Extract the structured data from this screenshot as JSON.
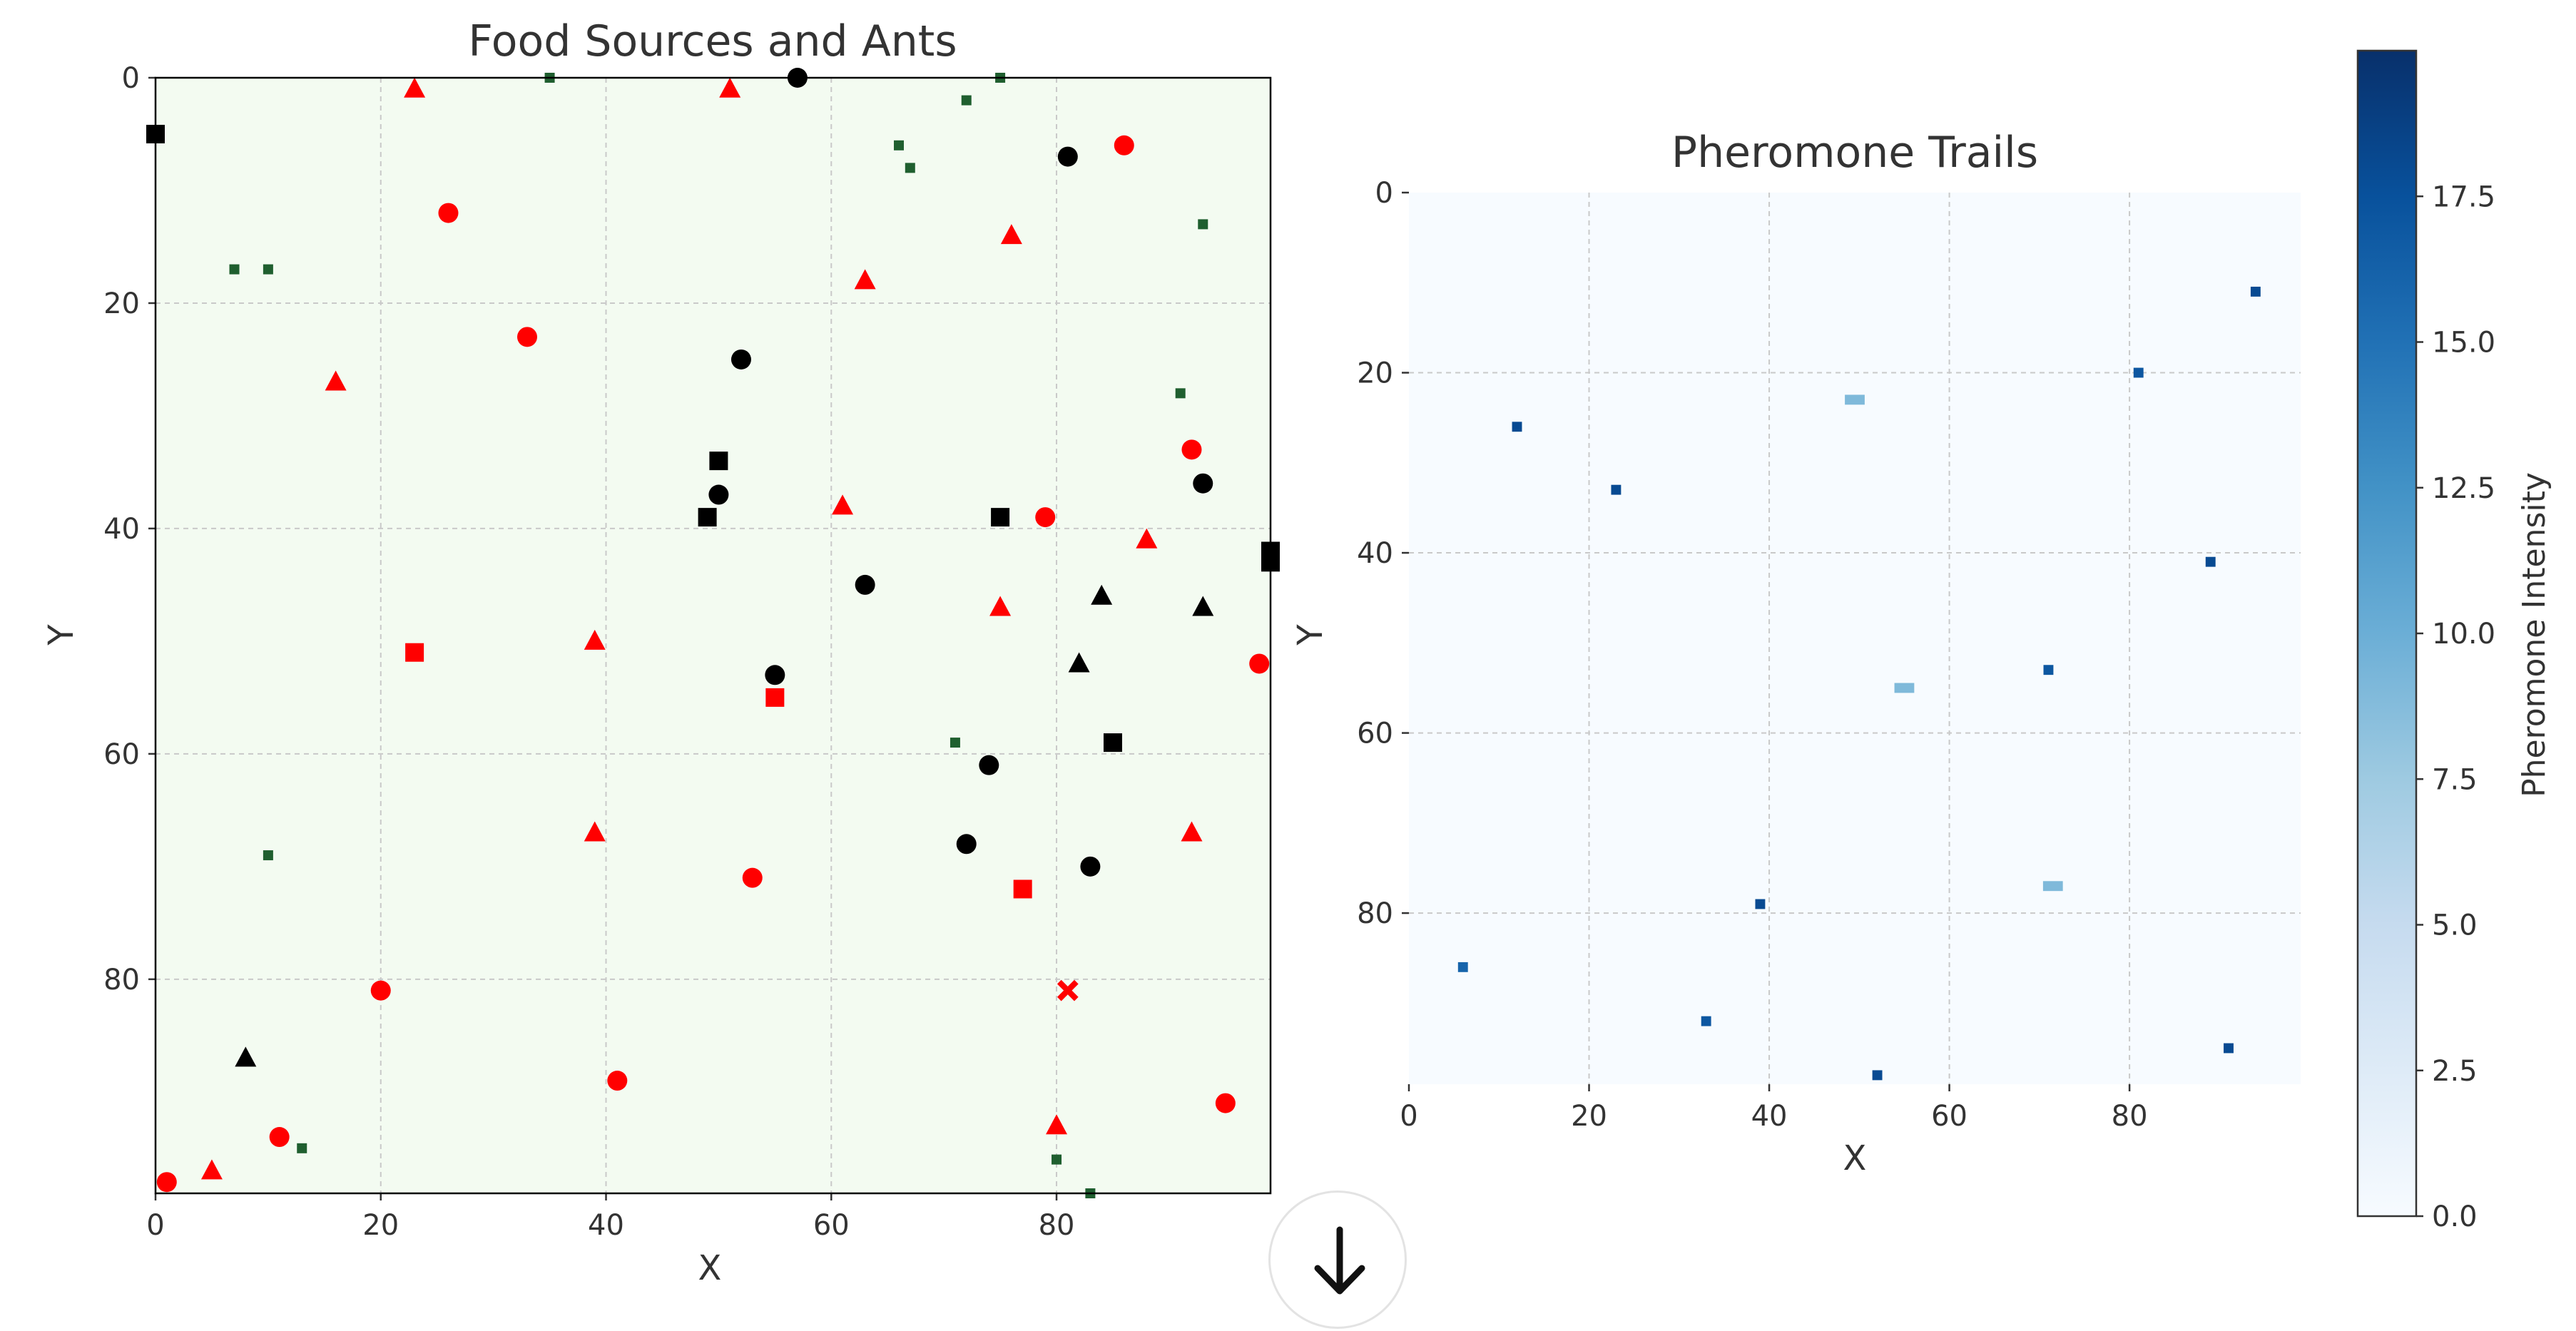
{
  "chart_data": [
    {
      "type": "scatter",
      "title": "Food Sources and Ants",
      "xlabel": "X",
      "ylabel": "Y",
      "xlim": [
        0,
        99
      ],
      "ylim": [
        99,
        0
      ],
      "y_axis_inverted": true,
      "xticks": [
        "0",
        "20",
        "40",
        "60",
        "80"
      ],
      "yticks": [
        "0",
        "20",
        "40",
        "60",
        "80"
      ],
      "grid": true,
      "background_color": "#f3fbf1",
      "series": [
        {
          "marker": "circle",
          "color": "#ff0000",
          "points": [
            [
              26,
              12
            ],
            [
              33,
              23
            ],
            [
              86,
              6
            ],
            [
              92,
              33
            ],
            [
              79,
              39
            ],
            [
              98,
              52
            ],
            [
              53,
              71
            ],
            [
              20,
              81
            ],
            [
              41,
              89
            ],
            [
              95,
              91
            ],
            [
              11,
              94
            ],
            [
              1,
              98
            ]
          ]
        },
        {
          "marker": "triangle",
          "color": "#ff0000",
          "points": [
            [
              23,
              1
            ],
            [
              51,
              1
            ],
            [
              76,
              14
            ],
            [
              63,
              18
            ],
            [
              16,
              27
            ],
            [
              61,
              38
            ],
            [
              88,
              41
            ],
            [
              75,
              47
            ],
            [
              39,
              50
            ],
            [
              39,
              67
            ],
            [
              92,
              67
            ],
            [
              80,
              93
            ],
            [
              5,
              97
            ]
          ]
        },
        {
          "marker": "square",
          "color": "#ff0000",
          "points": [
            [
              23,
              51
            ],
            [
              55,
              55
            ],
            [
              77,
              72
            ]
          ]
        },
        {
          "marker": "x",
          "color": "#ff0000",
          "points": [
            [
              81,
              81
            ]
          ]
        },
        {
          "marker": "circle",
          "color": "#000000",
          "points": [
            [
              57,
              0
            ],
            [
              81,
              7
            ],
            [
              52,
              25
            ],
            [
              50,
              37
            ],
            [
              93,
              36
            ],
            [
              63,
              45
            ],
            [
              55,
              53
            ],
            [
              74,
              61
            ],
            [
              72,
              68
            ],
            [
              83,
              70
            ]
          ]
        },
        {
          "marker": "triangle",
          "color": "#000000",
          "points": [
            [
              84,
              46
            ],
            [
              93,
              47
            ],
            [
              82,
              52
            ],
            [
              8,
              87
            ]
          ]
        },
        {
          "marker": "square",
          "color": "#000000",
          "points": [
            [
              0,
              5
            ],
            [
              50,
              34
            ],
            [
              49,
              39
            ],
            [
              75,
              39
            ],
            [
              99,
              42
            ],
            [
              99,
              43
            ],
            [
              85,
              59
            ]
          ]
        },
        {
          "marker": "small-square",
          "color": "#1f5f2f",
          "points": [
            [
              35,
              0
            ],
            [
              75,
              0
            ],
            [
              72,
              2
            ],
            [
              66,
              6
            ],
            [
              67,
              8
            ],
            [
              93,
              13
            ],
            [
              7,
              17
            ],
            [
              10,
              17
            ],
            [
              91,
              28
            ],
            [
              71,
              59
            ],
            [
              10,
              69
            ],
            [
              13,
              95
            ],
            [
              80,
              96
            ],
            [
              83,
              99
            ]
          ]
        }
      ]
    },
    {
      "type": "heatmap",
      "title": "Pheromone Trails",
      "xlabel": "X",
      "ylabel": "Y",
      "xlim": [
        0,
        99
      ],
      "ylim": [
        99,
        0
      ],
      "y_axis_inverted": true,
      "xticks": [
        "0",
        "20",
        "40",
        "60",
        "80"
      ],
      "yticks": [
        "0",
        "20",
        "40",
        "60",
        "80"
      ],
      "grid": true,
      "colormap": "Blues",
      "colorbar": {
        "label": "Pheromone Intensity",
        "min": 0.0,
        "max": 20.0,
        "ticks": [
          "0.0",
          "2.5",
          "5.0",
          "7.5",
          "10.0",
          "12.5",
          "15.0",
          "17.5"
        ]
      },
      "cells": [
        {
          "x": 94,
          "y": 11,
          "w": 1,
          "value": 18
        },
        {
          "x": 81,
          "y": 20,
          "w": 1,
          "value": 17
        },
        {
          "x": 12,
          "y": 26,
          "w": 1,
          "value": 18
        },
        {
          "x": 23,
          "y": 33,
          "w": 1,
          "value": 18
        },
        {
          "x": 89,
          "y": 41,
          "w": 1,
          "value": 18
        },
        {
          "x": 71,
          "y": 53,
          "w": 1,
          "value": 17
        },
        {
          "x": 39,
          "y": 79,
          "w": 1,
          "value": 18
        },
        {
          "x": 6,
          "y": 86,
          "w": 1,
          "value": 16
        },
        {
          "x": 33,
          "y": 92,
          "w": 1,
          "value": 17
        },
        {
          "x": 91,
          "y": 95,
          "w": 1,
          "value": 18
        },
        {
          "x": 52,
          "y": 98,
          "w": 1,
          "value": 18
        },
        {
          "x": 49.5,
          "y": 23,
          "w": 2,
          "value": 9
        },
        {
          "x": 55,
          "y": 55,
          "w": 2,
          "value": 9
        },
        {
          "x": 71.5,
          "y": 77,
          "w": 2,
          "value": 9
        }
      ]
    }
  ],
  "scroll_button": {
    "icon": "arrow-down-icon"
  }
}
